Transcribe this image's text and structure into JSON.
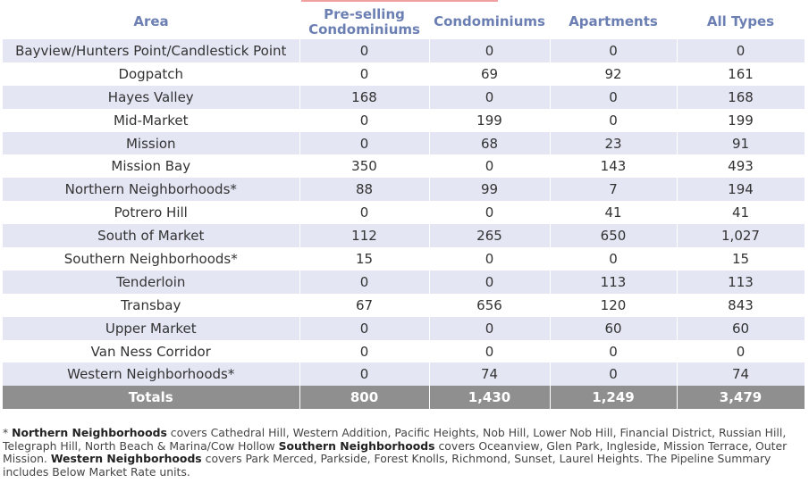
{
  "chart_data": {
    "type": "table",
    "columns": [
      "Area",
      "Pre-selling Condominiums",
      "Condominiums",
      "Apartments",
      "All Types"
    ],
    "rows": [
      {
        "area": "Bayview/Hunters Point/Candlestick Point",
        "pre": "0",
        "condo": "0",
        "apt": "0",
        "all": "0"
      },
      {
        "area": "Dogpatch",
        "pre": "0",
        "condo": "69",
        "apt": "92",
        "all": "161"
      },
      {
        "area": "Hayes Valley",
        "pre": "168",
        "condo": "0",
        "apt": "0",
        "all": "168"
      },
      {
        "area": "Mid-Market",
        "pre": "0",
        "condo": "199",
        "apt": "0",
        "all": "199"
      },
      {
        "area": "Mission",
        "pre": "0",
        "condo": "68",
        "apt": "23",
        "all": "91"
      },
      {
        "area": "Mission Bay",
        "pre": "350",
        "condo": "0",
        "apt": "143",
        "all": "493"
      },
      {
        "area": "Northern Neighborhoods*",
        "pre": "88",
        "condo": "99",
        "apt": "7",
        "all": "194"
      },
      {
        "area": "Potrero Hill",
        "pre": "0",
        "condo": "0",
        "apt": "41",
        "all": "41"
      },
      {
        "area": "South of Market",
        "pre": "112",
        "condo": "265",
        "apt": "650",
        "all": "1,027"
      },
      {
        "area": "Southern Neighborhoods*",
        "pre": "15",
        "condo": "0",
        "apt": "0",
        "all": "15"
      },
      {
        "area": "Tenderloin",
        "pre": "0",
        "condo": "0",
        "apt": "113",
        "all": "113"
      },
      {
        "area": "Transbay",
        "pre": "67",
        "condo": "656",
        "apt": "120",
        "all": "843"
      },
      {
        "area": "Upper Market",
        "pre": "0",
        "condo": "0",
        "apt": "60",
        "all": "60"
      },
      {
        "area": "Van Ness Corridor",
        "pre": "0",
        "condo": "0",
        "apt": "0",
        "all": "0"
      },
      {
        "area": "Western Neighborhoods*",
        "pre": "0",
        "condo": "74",
        "apt": "0",
        "all": "74"
      }
    ],
    "totals": {
      "label": "Totals",
      "pre": "800",
      "condo": "1,430",
      "apt": "1,249",
      "all": "3,479"
    }
  },
  "header": {
    "area": "Area",
    "pre_line1": "Pre-selling",
    "pre_line2": "Condominiums",
    "condo": "Condominiums",
    "apt": "Apartments",
    "all": "All Types"
  },
  "footnote": {
    "star": "* ",
    "northern_label": "Northern Neighborhoods",
    "northern_text": " covers Cathedral Hill, Western Addition, Pacific Heights, Nob Hill, Lower Nob Hill, Financial District, Russian Hill, Telegraph Hill, North Beach & Marina/Cow Hollow ",
    "southern_label": "Southern Neighborhoods",
    "southern_text": " covers Oceanview, Glen Park, Ingleside, Mission Terrace, Outer Mission. ",
    "western_label": "Western Neighborhoods",
    "western_text": " covers Park Merced, Parkside, Forest Knolls, Richmond, Sunset, Laurel Heights. The Pipeline Summary includes Below Market Rate units."
  },
  "colors": {
    "header_text": "#6b7fb3",
    "stripe": "#e4e6f4",
    "totals_bg": "#8f8f8f"
  }
}
